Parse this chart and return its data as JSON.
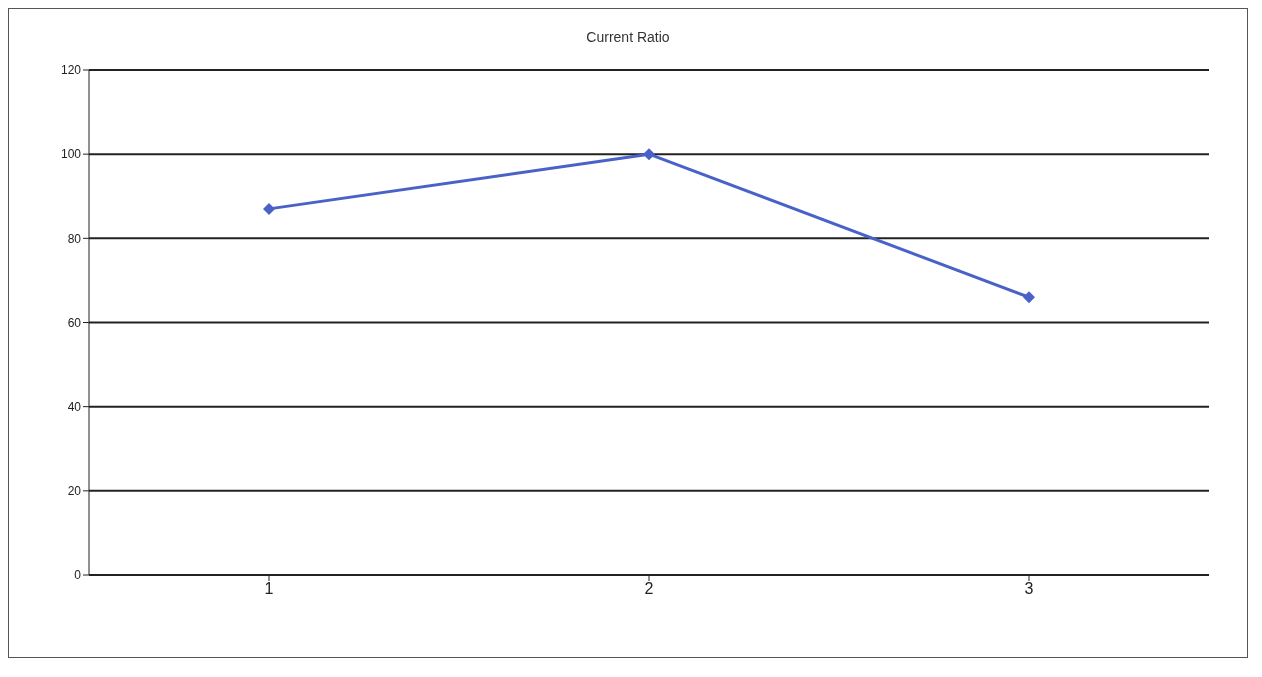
{
  "chart_data": {
    "type": "line",
    "title": "Current Ratio",
    "categories": [
      "1",
      "2",
      "3"
    ],
    "series": [
      {
        "color": "#4a62c8",
        "values": [
          87,
          100,
          66
        ]
      }
    ],
    "ylim": [
      0,
      120
    ],
    "yticks": [
      0,
      20,
      40,
      60,
      80,
      100,
      120
    ],
    "grid": "y",
    "marker": "diamond"
  }
}
